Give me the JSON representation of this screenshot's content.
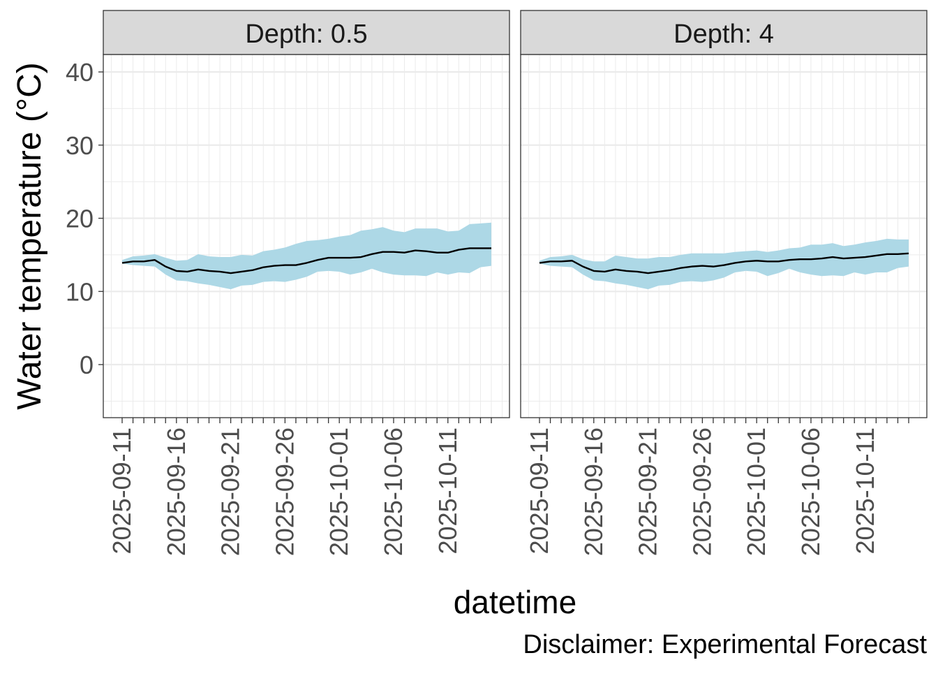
{
  "chart_data": {
    "type": "area",
    "ylabel": "Water temperature (°C)",
    "xlabel": "datetime",
    "caption": "Disclaimer: Experimental Forecast",
    "y_ticks": [
      "0",
      "10",
      "20",
      "30",
      "40"
    ],
    "ylim": [
      -7,
      42.5
    ],
    "x_range": [
      "2025-09-10",
      "2025-10-15"
    ],
    "x_ticks": [
      "2025-09-11",
      "2025-09-16",
      "2025-09-21",
      "2025-09-26",
      "2025-10-01",
      "2025-10-06",
      "2025-10-11"
    ],
    "grid": true,
    "colors": {
      "ribbon": "#add8e6",
      "line": "#000000",
      "strip": "#d9d9d9",
      "grid": "#ebebeb"
    },
    "panels": [
      {
        "strip_label": "Depth: 0.5",
        "dates": [
          "2025-09-11",
          "2025-09-12",
          "2025-09-13",
          "2025-09-14",
          "2025-09-15",
          "2025-09-16",
          "2025-09-17",
          "2025-09-18",
          "2025-09-19",
          "2025-09-20",
          "2025-09-21",
          "2025-09-22",
          "2025-09-23",
          "2025-09-24",
          "2025-09-25",
          "2025-09-26",
          "2025-09-27",
          "2025-09-28",
          "2025-09-29",
          "2025-09-30",
          "2025-10-01",
          "2025-10-02",
          "2025-10-03",
          "2025-10-04",
          "2025-10-05",
          "2025-10-06",
          "2025-10-07",
          "2025-10-08",
          "2025-10-09",
          "2025-10-10",
          "2025-10-11",
          "2025-10-12",
          "2025-10-13",
          "2025-10-14",
          "2025-10-15"
        ],
        "median": [
          13.9,
          14.1,
          14.1,
          14.3,
          13.4,
          12.8,
          12.7,
          13.0,
          12.8,
          12.7,
          12.5,
          12.7,
          12.9,
          13.3,
          13.5,
          13.6,
          13.6,
          13.9,
          14.3,
          14.6,
          14.6,
          14.6,
          14.7,
          15.1,
          15.4,
          15.4,
          15.3,
          15.6,
          15.5,
          15.3,
          15.3,
          15.7,
          15.9,
          15.9,
          15.9
        ],
        "upper": [
          14.3,
          14.8,
          14.9,
          15.1,
          14.6,
          14.2,
          14.3,
          15.1,
          14.8,
          14.7,
          14.7,
          15.0,
          14.9,
          15.5,
          15.7,
          16.0,
          16.5,
          16.9,
          17.0,
          17.2,
          17.5,
          17.7,
          18.3,
          18.5,
          18.8,
          18.3,
          18.1,
          18.6,
          18.6,
          18.6,
          18.2,
          18.3,
          19.2,
          19.3,
          19.4
        ],
        "lower": [
          13.8,
          13.6,
          13.5,
          13.4,
          12.3,
          11.5,
          11.4,
          11.1,
          10.9,
          10.6,
          10.3,
          10.8,
          10.9,
          11.3,
          11.4,
          11.3,
          11.6,
          12.0,
          12.7,
          12.8,
          12.7,
          12.3,
          12.6,
          13.1,
          12.6,
          12.3,
          12.2,
          12.2,
          12.1,
          12.6,
          12.3,
          12.6,
          12.5,
          13.3,
          13.5
        ]
      },
      {
        "strip_label": "Depth: 4",
        "dates": [
          "2025-09-11",
          "2025-09-12",
          "2025-09-13",
          "2025-09-14",
          "2025-09-15",
          "2025-09-16",
          "2025-09-17",
          "2025-09-18",
          "2025-09-19",
          "2025-09-20",
          "2025-09-21",
          "2025-09-22",
          "2025-09-23",
          "2025-09-24",
          "2025-09-25",
          "2025-09-26",
          "2025-09-27",
          "2025-09-28",
          "2025-09-29",
          "2025-09-30",
          "2025-10-01",
          "2025-10-02",
          "2025-10-03",
          "2025-10-04",
          "2025-10-05",
          "2025-10-06",
          "2025-10-07",
          "2025-10-08",
          "2025-10-09",
          "2025-10-10",
          "2025-10-11",
          "2025-10-12",
          "2025-10-13",
          "2025-10-14",
          "2025-10-15"
        ],
        "median": [
          13.9,
          14.1,
          14.1,
          14.2,
          13.4,
          12.8,
          12.7,
          13.0,
          12.8,
          12.7,
          12.5,
          12.7,
          12.9,
          13.2,
          13.4,
          13.5,
          13.4,
          13.6,
          13.9,
          14.1,
          14.2,
          14.1,
          14.1,
          14.3,
          14.4,
          14.4,
          14.5,
          14.7,
          14.5,
          14.6,
          14.7,
          14.9,
          15.1,
          15.1,
          15.2
        ],
        "upper": [
          14.2,
          14.7,
          14.8,
          15.0,
          14.4,
          14.1,
          14.1,
          14.9,
          14.7,
          14.5,
          14.5,
          14.7,
          14.7,
          15.0,
          15.2,
          15.2,
          15.2,
          15.2,
          15.4,
          15.5,
          15.6,
          15.4,
          15.6,
          15.9,
          16.0,
          16.4,
          16.4,
          16.6,
          16.2,
          16.4,
          16.7,
          16.9,
          17.2,
          17.1,
          17.1
        ],
        "lower": [
          13.8,
          13.5,
          13.4,
          13.3,
          12.3,
          11.5,
          11.4,
          11.1,
          10.9,
          10.6,
          10.3,
          10.8,
          10.9,
          11.3,
          11.4,
          11.3,
          11.5,
          11.9,
          12.6,
          12.8,
          12.7,
          12.1,
          12.5,
          13.1,
          12.6,
          12.3,
          12.1,
          12.2,
          12.1,
          12.6,
          12.3,
          12.6,
          12.6,
          13.2,
          13.4
        ]
      }
    ]
  }
}
